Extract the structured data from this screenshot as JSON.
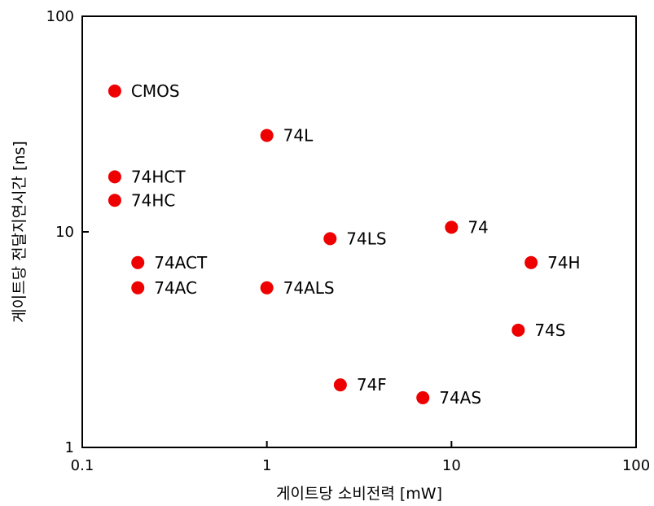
{
  "chart_data": {
    "type": "scatter",
    "title": "",
    "xlabel": "게이트당 소비전력 [mW]",
    "ylabel": "게이트당 전달지연시간 [ns]",
    "x_scale": "log",
    "y_scale": "log",
    "xlim": [
      0.1,
      100
    ],
    "ylim": [
      1,
      100
    ],
    "x_ticks": [
      {
        "value": 0.1,
        "label": "0.1"
      },
      {
        "value": 1,
        "label": "1"
      },
      {
        "value": 10,
        "label": "10"
      },
      {
        "value": 100,
        "label": "100"
      }
    ],
    "y_ticks": [
      {
        "value": 1,
        "label": "1"
      },
      {
        "value": 10,
        "label": "10"
      },
      {
        "value": 100,
        "label": "100"
      }
    ],
    "grid": false,
    "marker_color": "#ee0000",
    "points": [
      {
        "label": "CMOS",
        "x": 0.15,
        "y": 45
      },
      {
        "label": "74L",
        "x": 1.0,
        "y": 28
      },
      {
        "label": "74HCT",
        "x": 0.15,
        "y": 18
      },
      {
        "label": "74HC",
        "x": 0.15,
        "y": 14
      },
      {
        "label": "74",
        "x": 10,
        "y": 10.5
      },
      {
        "label": "74LS",
        "x": 2.2,
        "y": 9.3
      },
      {
        "label": "74ACT",
        "x": 0.2,
        "y": 7.2
      },
      {
        "label": "74H",
        "x": 27,
        "y": 7.2
      },
      {
        "label": "74AC",
        "x": 0.2,
        "y": 5.5
      },
      {
        "label": "74ALS",
        "x": 1.0,
        "y": 5.5
      },
      {
        "label": "74S",
        "x": 23,
        "y": 3.5
      },
      {
        "label": "74F",
        "x": 2.5,
        "y": 1.95
      },
      {
        "label": "74AS",
        "x": 7,
        "y": 1.7
      }
    ]
  }
}
